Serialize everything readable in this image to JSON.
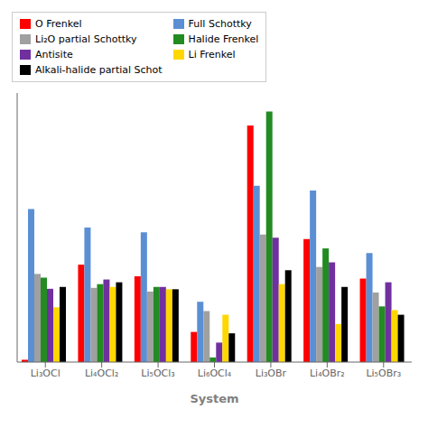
{
  "chart_data": {
    "type": "bar",
    "xlabel": "System",
    "categories": [
      "Li₃OCl",
      "Li₄OCl₂",
      "Li₅OCl₃",
      "Li₆OCl₄",
      "Li₃OBr",
      "Li₄OBr₂",
      "Li₅OBr₃"
    ],
    "series": [
      {
        "name": "O Frenkel",
        "color": "#FF0000",
        "values": [
          0.05,
          2.1,
          1.85,
          0.65,
          5.1,
          2.65,
          1.8
        ]
      },
      {
        "name": "Full Schottky",
        "color": "#5B8FD4",
        "values": [
          3.3,
          2.9,
          2.8,
          1.3,
          3.8,
          3.7,
          2.35
        ]
      },
      {
        "name": "Li₂O partial Schottky",
        "color": "#A0A0A0",
        "values": [
          1.9,
          1.6,
          1.52,
          1.1,
          2.75,
          2.05,
          1.5
        ]
      },
      {
        "name": "Halide Frenkel",
        "color": "#228B22",
        "values": [
          1.82,
          1.68,
          1.62,
          0.1,
          5.4,
          2.45,
          1.2
        ]
      },
      {
        "name": "Antisite",
        "color": "#7030A0",
        "values": [
          1.58,
          1.78,
          1.62,
          0.42,
          2.68,
          2.15,
          1.72
        ]
      },
      {
        "name": "Li Frenkel",
        "color": "#FFD700",
        "values": [
          1.18,
          1.62,
          1.57,
          1.02,
          1.68,
          0.82,
          1.12
        ]
      },
      {
        "name": "Alkali-halide partial Schot",
        "color": "#000000",
        "values": [
          1.62,
          1.72,
          1.57,
          0.62,
          1.98,
          1.62,
          1.02
        ]
      }
    ],
    "ylim": [
      0,
      5.8
    ],
    "grid": false,
    "legend": "upper left",
    "tick_labels": "x"
  }
}
